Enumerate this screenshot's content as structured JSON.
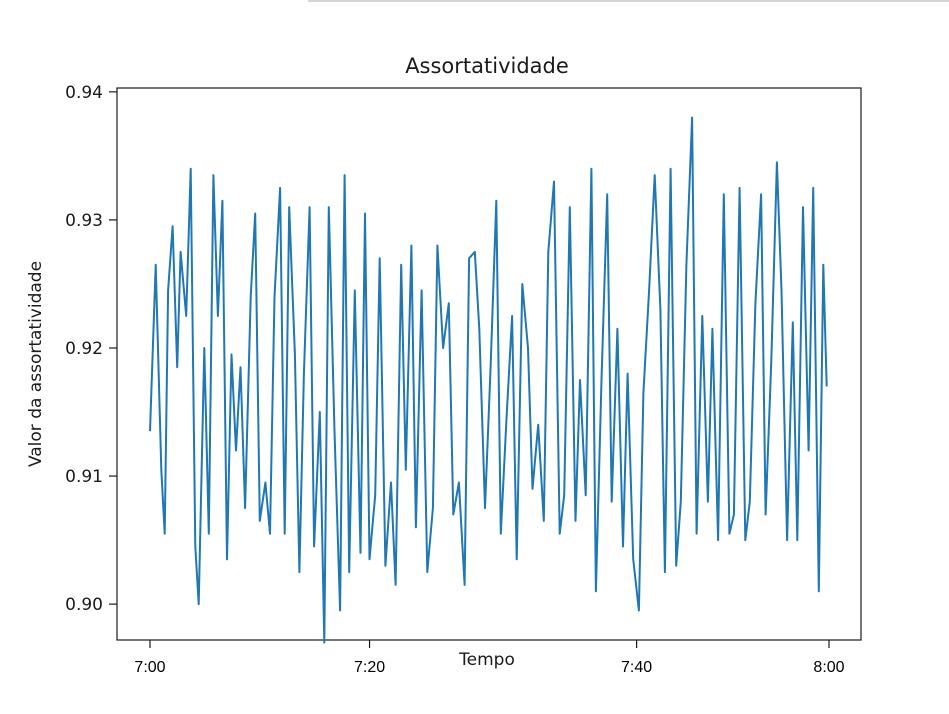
{
  "chart_data": {
    "type": "line",
    "title": "Assortatividade",
    "xlabel": "Tempo",
    "ylabel": "Valor da assortatividade",
    "xlim": [
      0,
      60
    ],
    "ylim": [
      0.8972,
      0.9403
    ],
    "yticks": [
      "0.90",
      "0.91",
      "0.92",
      "0.93",
      "0.94"
    ],
    "ytick_values": [
      0.9,
      0.91,
      0.92,
      0.93,
      0.94
    ],
    "xticks": [
      "7:00",
      "7:20",
      "7:40",
      "8:00"
    ],
    "xtick_values": [
      0,
      19.4,
      43.0,
      60
    ],
    "grid": false,
    "legend": "none",
    "series": [
      {
        "color": "#1f77b4",
        "x": [
          0,
          0.5,
          1.0,
          1.3,
          1.6,
          2.0,
          2.4,
          2.7,
          3.2,
          3.6,
          4.0,
          4.3,
          4.8,
          5.2,
          5.6,
          6.0,
          6.4,
          6.8,
          7.2,
          7.6,
          8.0,
          8.4,
          8.9,
          9.3,
          9.7,
          10.2,
          10.6,
          11.0,
          11.5,
          11.9,
          12.3,
          12.8,
          13.2,
          13.6,
          14.1,
          14.5,
          15.0,
          15.4,
          15.8,
          16.3,
          16.8,
          17.2,
          17.6,
          18.1,
          18.6,
          19.0,
          19.4,
          19.9,
          20.3,
          20.8,
          21.3,
          21.7,
          22.2,
          22.6,
          23.1,
          23.5,
          24.0,
          24.5,
          25.0,
          25.4,
          25.9,
          26.4,
          26.8,
          27.3,
          27.8,
          28.2,
          28.7,
          29.1,
          29.6,
          30.1,
          30.6,
          31.0,
          31.5,
          32.0,
          32.4,
          32.9,
          33.4,
          33.8,
          34.3,
          34.8,
          35.2,
          35.7,
          36.2,
          36.6,
          37.1,
          37.6,
          38.0,
          38.5,
          39.0,
          39.4,
          39.9,
          40.4,
          40.8,
          41.3,
          41.8,
          42.2,
          42.7,
          43.2,
          43.6,
          44.1,
          44.6,
          45.1,
          45.5,
          46.0,
          46.5,
          46.9,
          47.4,
          47.9,
          48.3,
          48.8,
          49.3,
          49.7,
          50.2,
          50.7,
          51.2,
          51.6,
          52.1,
          52.6,
          53.0,
          53.5,
          54.0,
          54.4,
          54.9,
          55.4,
          55.8,
          56.3,
          56.8,
          57.2,
          57.7,
          58.2,
          58.6,
          59.1,
          59.5,
          59.8
        ],
        "y": [
          0.9135,
          0.9265,
          0.9105,
          0.9055,
          0.9245,
          0.9295,
          0.9185,
          0.9275,
          0.9225,
          0.934,
          0.9045,
          0.9,
          0.92,
          0.9055,
          0.9335,
          0.9225,
          0.9315,
          0.9035,
          0.9195,
          0.912,
          0.9185,
          0.9075,
          0.924,
          0.9305,
          0.9065,
          0.9095,
          0.9055,
          0.924,
          0.9325,
          0.9055,
          0.931,
          0.9195,
          0.9025,
          0.918,
          0.931,
          0.9045,
          0.915,
          0.897,
          0.931,
          0.9135,
          0.8995,
          0.9335,
          0.9025,
          0.9245,
          0.904,
          0.9305,
          0.9035,
          0.9085,
          0.927,
          0.903,
          0.9095,
          0.9015,
          0.9265,
          0.9105,
          0.928,
          0.906,
          0.9245,
          0.9025,
          0.9075,
          0.928,
          0.92,
          0.9235,
          0.907,
          0.9095,
          0.9015,
          0.927,
          0.9275,
          0.9215,
          0.9075,
          0.9185,
          0.9315,
          0.9055,
          0.9145,
          0.9225,
          0.9035,
          0.925,
          0.92,
          0.909,
          0.914,
          0.9065,
          0.9275,
          0.933,
          0.9055,
          0.9085,
          0.931,
          0.9065,
          0.9175,
          0.9085,
          0.934,
          0.901,
          0.9175,
          0.932,
          0.908,
          0.9215,
          0.9045,
          0.918,
          0.9035,
          0.8995,
          0.9165,
          0.9245,
          0.9335,
          0.923,
          0.9025,
          0.934,
          0.903,
          0.908,
          0.9265,
          0.938,
          0.9055,
          0.9225,
          0.908,
          0.9215,
          0.905,
          0.932,
          0.9055,
          0.907,
          0.9325,
          0.905,
          0.908,
          0.9235,
          0.932,
          0.907,
          0.919,
          0.9345,
          0.9245,
          0.905,
          0.922,
          0.905,
          0.931,
          0.912,
          0.9325,
          0.901,
          0.9265,
          0.917
        ]
      }
    ]
  }
}
